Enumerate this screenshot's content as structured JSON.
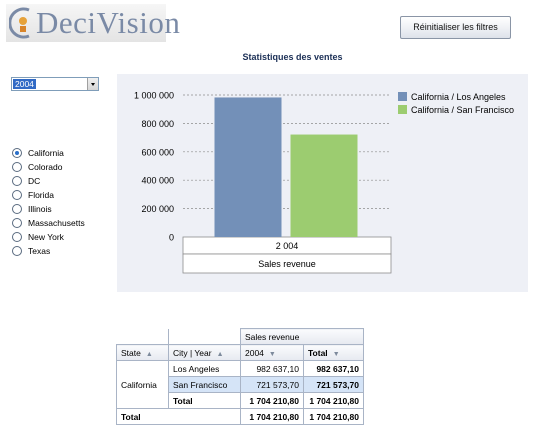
{
  "header": {
    "brand_prefix": "(",
    "brand_name": "DeciVision",
    "reset_label": "Réinitialiser les filtres"
  },
  "page_title": "Statistiques des ventes",
  "year_filter": {
    "selected": "2004"
  },
  "states": [
    {
      "label": "California",
      "selected": true
    },
    {
      "label": "Colorado",
      "selected": false
    },
    {
      "label": "DC",
      "selected": false
    },
    {
      "label": "Florida",
      "selected": false
    },
    {
      "label": "Illinois",
      "selected": false
    },
    {
      "label": "Massachusetts",
      "selected": false
    },
    {
      "label": "New York",
      "selected": false
    },
    {
      "label": "Texas",
      "selected": false
    }
  ],
  "chart_data": {
    "type": "bar",
    "categories": [
      "2 004"
    ],
    "xlabel": "Sales revenue",
    "ylim": [
      0,
      1000000
    ],
    "yticks": [
      "0",
      "200 000",
      "400 000",
      "600 000",
      "800 000",
      "1 000 000"
    ],
    "grid": true,
    "legend_position": "top-right",
    "series": [
      {
        "name": "California / Los Angeles",
        "values": [
          982637.1
        ],
        "color": "#7390b8"
      },
      {
        "name": "California / San Francisco",
        "values": [
          721573.7
        ],
        "color": "#9ccc70"
      }
    ]
  },
  "pivot": {
    "measure": "Sales revenue",
    "headers": {
      "state": "State",
      "city_year": "City | Year",
      "year": "2004",
      "total": "Total"
    },
    "state": "California",
    "rows": [
      {
        "city": "Los Angeles",
        "year": "982 637,10",
        "total": "982 637,10"
      },
      {
        "city": "San Francisco",
        "year": "721 573,70",
        "total": "721 573,70"
      }
    ],
    "subtotal": {
      "label": "Total",
      "year": "1 704 210,80",
      "total": "1 704 210,80"
    },
    "grand_total": {
      "label": "Total",
      "year": "1 704 210,80",
      "total": "1 704 210,80"
    }
  }
}
